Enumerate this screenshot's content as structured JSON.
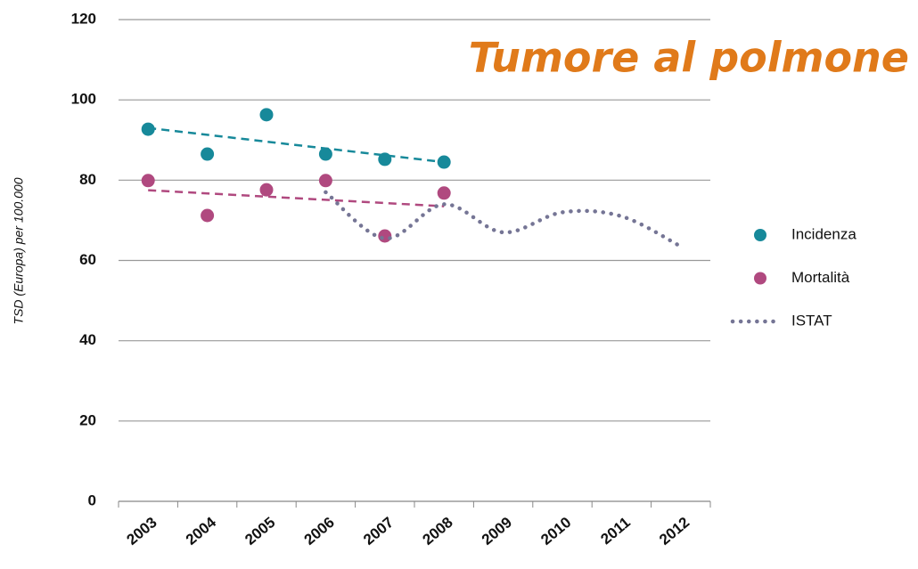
{
  "chart_data": {
    "type": "scatter",
    "title": "Tumore al polmone",
    "y_label": "TSD (Europa) per 100.000",
    "categories": [
      "2003",
      "2004",
      "2005",
      "2006",
      "2007",
      "2008",
      "2009",
      "2010",
      "2011",
      "2012"
    ],
    "series": [
      {
        "name": "Incidenza",
        "color": "#17899a",
        "values": [
          92.7,
          86.5,
          96.3,
          86.5,
          85.2,
          84.5,
          null,
          null,
          null,
          null
        ],
        "trend": [
          93,
          84.5
        ]
      },
      {
        "name": "Mortalità",
        "color": "#b0497f",
        "values": [
          79.9,
          71.2,
          77.6,
          79.9,
          66.1,
          76.8,
          null,
          null,
          null,
          null
        ],
        "trend": [
          77.5,
          73.5
        ]
      },
      {
        "name": "ISTAT",
        "color": "#757595",
        "values": [
          null,
          null,
          null,
          77,
          65.5,
          74,
          67,
          72,
          71,
          63.5
        ],
        "line": "dotted"
      }
    ],
    "ylim": [
      0,
      120
    ],
    "yticks": [
      0,
      20,
      40,
      60,
      80,
      100,
      120
    ],
    "grid": true
  }
}
